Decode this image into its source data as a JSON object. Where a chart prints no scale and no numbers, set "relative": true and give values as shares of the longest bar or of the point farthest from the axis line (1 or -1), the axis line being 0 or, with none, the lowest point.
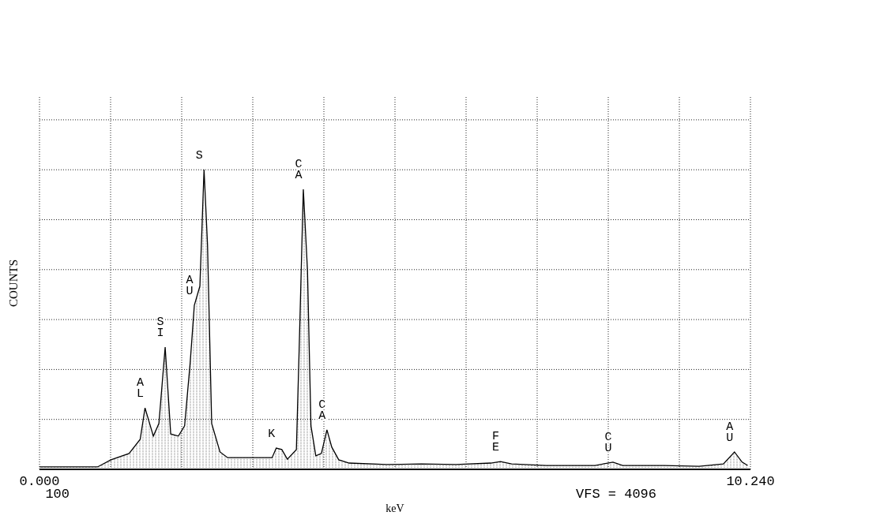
{
  "chart_data": {
    "type": "area",
    "relative": true,
    "xlabel": "keV",
    "ylabel": "COUNTS",
    "x": [
      0,
      0.835,
      1.03,
      1.29,
      1.45,
      1.52,
      1.64,
      1.72,
      1.81,
      1.89,
      2.0,
      2.09,
      2.17,
      2.23,
      2.31,
      2.37,
      2.42,
      2.48,
      2.6,
      2.71,
      3.12,
      3.35,
      3.41,
      3.49,
      3.57,
      3.7,
      3.74,
      3.8,
      3.86,
      3.91,
      3.98,
      4.06,
      4.14,
      4.21,
      4.31,
      4.46,
      5.0,
      5.5,
      6.0,
      6.5,
      6.64,
      6.8,
      7.3,
      8.0,
      8.26,
      8.4,
      9.0,
      9.5,
      9.85,
      10.01,
      10.12,
      10.2
    ],
    "series": [
      {
        "color": "#000000",
        "values": [
          0.008,
          0.008,
          0.032,
          0.053,
          0.1,
          0.205,
          0.111,
          0.153,
          0.408,
          0.118,
          0.111,
          0.145,
          0.355,
          0.547,
          0.611,
          1,
          0.75,
          0.153,
          0.058,
          0.039,
          0.039,
          0.039,
          0.071,
          0.066,
          0.034,
          0.066,
          0.4,
          0.934,
          0.663,
          0.145,
          0.045,
          0.053,
          0.132,
          0.074,
          0.032,
          0.021,
          0.016,
          0.018,
          0.016,
          0.021,
          0.026,
          0.018,
          0.013,
          0.013,
          0.024,
          0.013,
          0.013,
          0.01,
          0.018,
          0.058,
          0.024,
          0.013
        ]
      }
    ],
    "xlim": [
      0,
      10.24
    ],
    "xticks": [
      {
        "value": 0,
        "label": "0.000"
      },
      {
        "value": 1.024,
        "label": null
      },
      {
        "value": 2.048,
        "label": null
      },
      {
        "value": 3.072,
        "label": null
      },
      {
        "value": 4.096,
        "label": null
      },
      {
        "value": 5.12,
        "label": null
      },
      {
        "value": 6.144,
        "label": null
      },
      {
        "value": 7.168,
        "label": null
      },
      {
        "value": 8.192,
        "label": null
      },
      {
        "value": 9.216,
        "label": null
      },
      {
        "value": 10.24,
        "label": "10.240"
      }
    ],
    "grid": true,
    "annotations": [
      {
        "text": "AL",
        "x": 1.52,
        "y": 0.205
      },
      {
        "text": "SI",
        "x": 1.81,
        "y": 0.408
      },
      {
        "text": "AU",
        "x": 2.23,
        "y": 0.547
      },
      {
        "text": "S",
        "x": 2.37,
        "y": 1
      },
      {
        "text": "K",
        "x": 3.41,
        "y": 0.071
      },
      {
        "text": "CA",
        "x": 3.8,
        "y": 0.934
      },
      {
        "text": "CA",
        "x": 4.14,
        "y": 0.132
      },
      {
        "text": "FE",
        "x": 6.64,
        "y": 0.026
      },
      {
        "text": "CU",
        "x": 8.26,
        "y": 0.024
      },
      {
        "text": "AU",
        "x": 10.01,
        "y": 0.058
      },
      "100",
      "VFS = 4096"
    ]
  }
}
